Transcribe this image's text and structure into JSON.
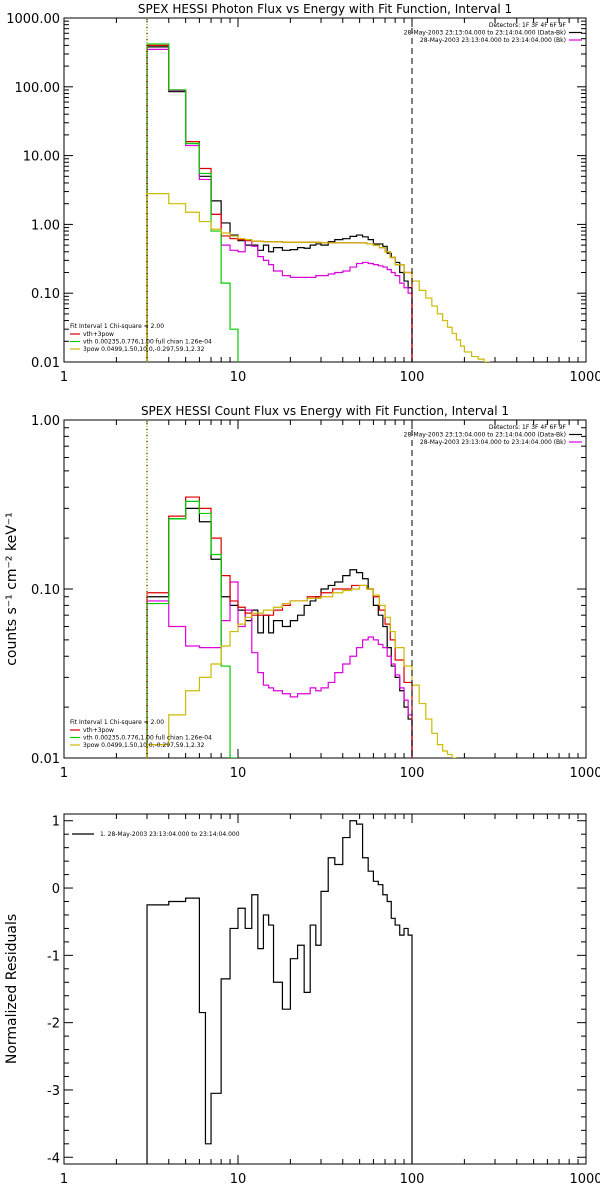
{
  "chart_data": [
    {
      "type": "line",
      "title": "SPEX HESSI Photon Flux vs Energy with Fit Function, Interval 1",
      "xlabel": "",
      "ylabel": "",
      "xscale": "log",
      "yscale": "log",
      "xlim": [
        1,
        1000
      ],
      "ylim": [
        0.01,
        1000
      ],
      "x_ticks": [
        {
          "v": 1,
          "t": "1"
        },
        {
          "v": 10,
          "t": "10"
        },
        {
          "v": 100,
          "t": "100"
        },
        {
          "v": 1000,
          "t": "1000"
        }
      ],
      "y_ticks": [
        {
          "v": 0.01,
          "t": "0.01"
        },
        {
          "v": 0.1,
          "t": "0.10"
        },
        {
          "v": 1,
          "t": "1.00"
        },
        {
          "v": 10,
          "t": "10.00"
        },
        {
          "v": 100,
          "t": "100.00"
        },
        {
          "v": 1000,
          "t": "1000.00"
        }
      ],
      "header_lines": [
        {
          "text": "Detectors: 1F 3F 4F 6F 9F",
          "swatch": ""
        },
        {
          "text": "28-May-2003 23:13:04.000 to 23:14:04.000 (Data-Bk)",
          "swatch": "#000000"
        },
        {
          "text": "28-May-2003 23:13:04.000 to 23:14:04.000 (Bk)",
          "swatch": "#dd00dd"
        }
      ],
      "fit_legend": {
        "title": "Fit Interval 1    Chi-square = 2.00",
        "entries": [
          {
            "label": "vth+3pow",
            "color": "#dd0000"
          },
          {
            "label": "vth 0.00235,0.776,1.00  full chian 1.26e-04",
            "color": "#00cc00"
          },
          {
            "label": "3pow 0.0499,1.50,10.0,-0.297,59.1,2.32",
            "color": "#ccbb00"
          }
        ]
      },
      "vlines": [
        {
          "x": 3,
          "style": "dotted",
          "color": "#000000"
        },
        {
          "x": 3,
          "style": "solid",
          "color": "#ccbb00"
        },
        {
          "x": 100,
          "style": "dashed",
          "color": "#000000"
        }
      ],
      "series": [
        {
          "color": "#000000",
          "edges": [
            3,
            4,
            5,
            6,
            7,
            8,
            9,
            10,
            11,
            12,
            13,
            14,
            15,
            16,
            18,
            20,
            22,
            24,
            26,
            28,
            30,
            33,
            36,
            40,
            44,
            48,
            52,
            56,
            60,
            64,
            68,
            72,
            76,
            80,
            85,
            90,
            95,
            100
          ],
          "values": [
            380,
            85,
            15,
            5,
            2.2,
            1.05,
            0.7,
            0.58,
            0.5,
            0.5,
            0.42,
            0.5,
            0.4,
            0.46,
            0.42,
            0.43,
            0.46,
            0.45,
            0.5,
            0.52,
            0.5,
            0.56,
            0.6,
            0.62,
            0.67,
            0.7,
            0.66,
            0.6,
            0.52,
            0.52,
            0.48,
            0.38,
            0.33,
            0.28,
            0.2,
            0.15,
            0.12
          ]
        },
        {
          "color": "#dd00dd",
          "edges": [
            3,
            4,
            5,
            6,
            7,
            8,
            9,
            10,
            11,
            12,
            13,
            14,
            15,
            16,
            18,
            20,
            22,
            24,
            26,
            28,
            30,
            33,
            36,
            40,
            44,
            48,
            52,
            56,
            60,
            64,
            68,
            72,
            76,
            80,
            85,
            90,
            95,
            100
          ],
          "values": [
            350,
            88,
            14,
            4.5,
            1.4,
            0.5,
            0.42,
            0.4,
            0.6,
            0.48,
            0.34,
            0.3,
            0.26,
            0.21,
            0.18,
            0.17,
            0.17,
            0.17,
            0.17,
            0.18,
            0.18,
            0.19,
            0.2,
            0.21,
            0.24,
            0.27,
            0.28,
            0.27,
            0.26,
            0.25,
            0.24,
            0.22,
            0.2,
            0.18,
            0.14,
            0.12,
            0.1
          ]
        },
        {
          "color": "#dd0000",
          "edges": [
            3,
            4,
            5,
            6,
            7,
            8,
            9,
            10,
            11,
            12,
            14,
            16,
            18,
            20,
            25,
            30,
            35,
            40,
            45,
            50,
            55,
            60,
            65,
            70,
            75,
            80,
            90,
            100
          ],
          "values": [
            400,
            90,
            16,
            6.5,
            1.4,
            0.68,
            0.62,
            0.6,
            0.58,
            0.57,
            0.56,
            0.56,
            0.55,
            0.55,
            0.55,
            0.54,
            0.54,
            0.54,
            0.54,
            0.54,
            0.52,
            0.5,
            0.46,
            0.4,
            0.33,
            0.26,
            0.2
          ]
        },
        {
          "color": "#00cc00",
          "edges": [
            3,
            4,
            5,
            6,
            7,
            8,
            9,
            10
          ],
          "values": [
            420,
            90,
            15,
            5.5,
            0.8,
            0.14,
            0.03
          ]
        },
        {
          "color": "#ccbb00",
          "edges": [
            3,
            4,
            5,
            6,
            7,
            8,
            9,
            10,
            11,
            12,
            14,
            16,
            18,
            20,
            25,
            30,
            35,
            40,
            45,
            50,
            55,
            60,
            65,
            70,
            75,
            80,
            90,
            100,
            110,
            120,
            130,
            140,
            150,
            160,
            170,
            180,
            190,
            200,
            220,
            240,
            260,
            280
          ],
          "values": [
            2.8,
            2.0,
            1.5,
            1.1,
            0.85,
            0.75,
            0.68,
            0.62,
            0.6,
            0.57,
            0.56,
            0.56,
            0.55,
            0.55,
            0.55,
            0.54,
            0.54,
            0.54,
            0.54,
            0.54,
            0.52,
            0.5,
            0.46,
            0.4,
            0.33,
            0.26,
            0.2,
            0.15,
            0.11,
            0.085,
            0.065,
            0.05,
            0.04,
            0.032,
            0.026,
            0.021,
            0.017,
            0.014,
            0.012,
            0.011,
            0.01
          ]
        }
      ]
    },
    {
      "type": "line",
      "title": "SPEX HESSI Count Flux vs Energy with Fit Function, Interval 1",
      "xlabel": "",
      "ylabel": "counts s⁻¹ cm⁻² keV⁻¹",
      "xscale": "log",
      "yscale": "log",
      "xlim": [
        1,
        1000
      ],
      "ylim": [
        0.01,
        1
      ],
      "x_ticks": [
        {
          "v": 1,
          "t": "1"
        },
        {
          "v": 10,
          "t": "10"
        },
        {
          "v": 100,
          "t": "100"
        },
        {
          "v": 1000,
          "t": "1000"
        }
      ],
      "y_ticks": [
        {
          "v": 0.01,
          "t": "0.01"
        },
        {
          "v": 0.1,
          "t": "0.10"
        },
        {
          "v": 1,
          "t": "1.00"
        }
      ],
      "header_lines": [
        {
          "text": "Detectors: 1F 3F 4F 6F 9F",
          "swatch": ""
        },
        {
          "text": "28-May-2003 23:13:04.000 to 23:14:04.000 (Data-Bk)",
          "swatch": "#000000"
        },
        {
          "text": "28-May-2003 23:13:04.000 to 23:14:04.000 (Bk)",
          "swatch": "#dd00dd"
        }
      ],
      "fit_legend": {
        "title": "Fit Interval 1    Chi-square = 2.00",
        "entries": [
          {
            "label": "vth+3pow",
            "color": "#dd0000"
          },
          {
            "label": "vth 0.00235,0.776,1.00  full chian 1.26e-04",
            "color": "#00cc00"
          },
          {
            "label": "3pow 0.0499,1.50,10.0,-0.297,59.1,2.32",
            "color": "#ccbb00"
          }
        ]
      },
      "vlines": [
        {
          "x": 3,
          "style": "dotted",
          "color": "#000000"
        },
        {
          "x": 3,
          "style": "solid",
          "color": "#ccbb00"
        },
        {
          "x": 100,
          "style": "dashed",
          "color": "#000000"
        }
      ],
      "series": [
        {
          "color": "#000000",
          "edges": [
            3,
            4,
            5,
            6,
            7,
            8,
            9,
            10,
            11,
            12,
            13,
            14,
            15,
            16,
            18,
            20,
            22,
            24,
            26,
            28,
            30,
            33,
            36,
            40,
            44,
            48,
            52,
            56,
            60,
            64,
            68,
            72,
            76,
            80,
            85,
            90,
            95,
            100
          ],
          "values": [
            0.09,
            0.26,
            0.3,
            0.25,
            0.15,
            0.09,
            0.08,
            0.075,
            0.065,
            0.075,
            0.055,
            0.07,
            0.055,
            0.065,
            0.06,
            0.065,
            0.07,
            0.08,
            0.085,
            0.09,
            0.1,
            0.105,
            0.11,
            0.12,
            0.13,
            0.125,
            0.115,
            0.1,
            0.08,
            0.07,
            0.06,
            0.045,
            0.035,
            0.03,
            0.025,
            0.02,
            0.017
          ]
        },
        {
          "color": "#dd00dd",
          "edges": [
            3,
            4,
            5,
            6,
            7,
            8,
            9,
            10,
            11,
            12,
            13,
            14,
            15,
            16,
            18,
            20,
            22,
            24,
            26,
            28,
            30,
            33,
            36,
            40,
            44,
            48,
            52,
            56,
            60,
            64,
            68,
            72,
            76,
            80,
            85,
            90,
            95,
            100
          ],
          "values": [
            0.085,
            0.06,
            0.046,
            0.045,
            0.045,
            0.065,
            0.11,
            0.06,
            0.075,
            0.042,
            0.032,
            0.027,
            0.026,
            0.025,
            0.024,
            0.023,
            0.024,
            0.024,
            0.026,
            0.025,
            0.026,
            0.028,
            0.032,
            0.036,
            0.04,
            0.045,
            0.05,
            0.052,
            0.05,
            0.047,
            0.045,
            0.04,
            0.036,
            0.031,
            0.026,
            0.022,
            0.018
          ]
        },
        {
          "color": "#dd0000",
          "edges": [
            3,
            4,
            5,
            6,
            7,
            8,
            9,
            10,
            11,
            12,
            14,
            16,
            18,
            20,
            25,
            30,
            35,
            40,
            45,
            50,
            55,
            60,
            65,
            70,
            75,
            80,
            90,
            100
          ],
          "values": [
            0.095,
            0.27,
            0.35,
            0.3,
            0.2,
            0.12,
            0.085,
            0.078,
            0.072,
            0.07,
            0.07,
            0.075,
            0.08,
            0.085,
            0.09,
            0.095,
            0.1,
            0.1,
            0.105,
            0.105,
            0.1,
            0.09,
            0.075,
            0.062,
            0.05,
            0.038,
            0.028
          ]
        },
        {
          "color": "#00cc00",
          "edges": [
            3,
            4,
            5,
            6,
            7,
            8,
            9,
            10
          ],
          "values": [
            0.082,
            0.26,
            0.33,
            0.28,
            0.16,
            0.035,
            0.01
          ]
        },
        {
          "color": "#ccbb00",
          "edges": [
            3,
            4,
            5,
            6,
            7,
            8,
            9,
            10,
            11,
            12,
            14,
            16,
            18,
            20,
            25,
            30,
            35,
            40,
            45,
            50,
            55,
            60,
            65,
            70,
            75,
            80,
            90,
            100,
            110,
            120,
            130,
            140,
            150,
            160,
            170,
            180
          ],
          "values": [
            0.012,
            0.018,
            0.025,
            0.03,
            0.036,
            0.046,
            0.056,
            0.062,
            0.068,
            0.072,
            0.075,
            0.078,
            0.082,
            0.085,
            0.088,
            0.09,
            0.095,
            0.098,
            0.1,
            0.105,
            0.1,
            0.092,
            0.08,
            0.068,
            0.056,
            0.045,
            0.035,
            0.027,
            0.021,
            0.017,
            0.014,
            0.012,
            0.011,
            0.0105,
            0.01
          ]
        }
      ]
    },
    {
      "type": "line",
      "title": "",
      "xlabel": "",
      "ylabel": "Normalized Residuals",
      "xscale": "log",
      "yscale": "linear",
      "xlim": [
        1,
        1000
      ],
      "ylim": [
        -4.1,
        1.1
      ],
      "x_ticks": [
        {
          "v": 1,
          "t": "1"
        },
        {
          "v": 10,
          "t": "10"
        },
        {
          "v": 100,
          "t": "100"
        },
        {
          "v": 1000,
          "t": "1000"
        }
      ],
      "y_ticks": [
        {
          "v": -4,
          "t": "-4"
        },
        {
          "v": -3,
          "t": "-3"
        },
        {
          "v": -2,
          "t": "-2"
        },
        {
          "v": -1,
          "t": "-1"
        },
        {
          "v": 0,
          "t": "0"
        },
        {
          "v": 1,
          "t": "1"
        }
      ],
      "header_lines": [],
      "legend_entries": [
        {
          "label": "1. 28-May-2003 23:13:04.000 to 23:14:04.000",
          "color": "#000000"
        }
      ],
      "vlines": [],
      "series": [
        {
          "color": "#000000",
          "edges": [
            3,
            4,
            5,
            6,
            6.5,
            7,
            8,
            9,
            10,
            11,
            12,
            13,
            14,
            15,
            16,
            18,
            20,
            22,
            24,
            26,
            28,
            30,
            33,
            36,
            40,
            44,
            48,
            52,
            56,
            60,
            64,
            68,
            72,
            76,
            80,
            85,
            90,
            95,
            100
          ],
          "values": [
            -0.25,
            -0.2,
            -0.15,
            -1.85,
            -3.8,
            -3.05,
            -1.35,
            -0.6,
            -0.3,
            -0.6,
            -0.1,
            -0.9,
            -0.4,
            -0.55,
            -1.4,
            -1.8,
            -1.05,
            -0.85,
            -1.55,
            -0.55,
            -0.85,
            -0.05,
            0.45,
            0.35,
            0.75,
            1.0,
            0.95,
            0.45,
            0.25,
            0.1,
            0.05,
            -0.1,
            -0.2,
            -0.45,
            -0.55,
            -0.7,
            -0.6,
            -0.7
          ]
        }
      ]
    }
  ]
}
